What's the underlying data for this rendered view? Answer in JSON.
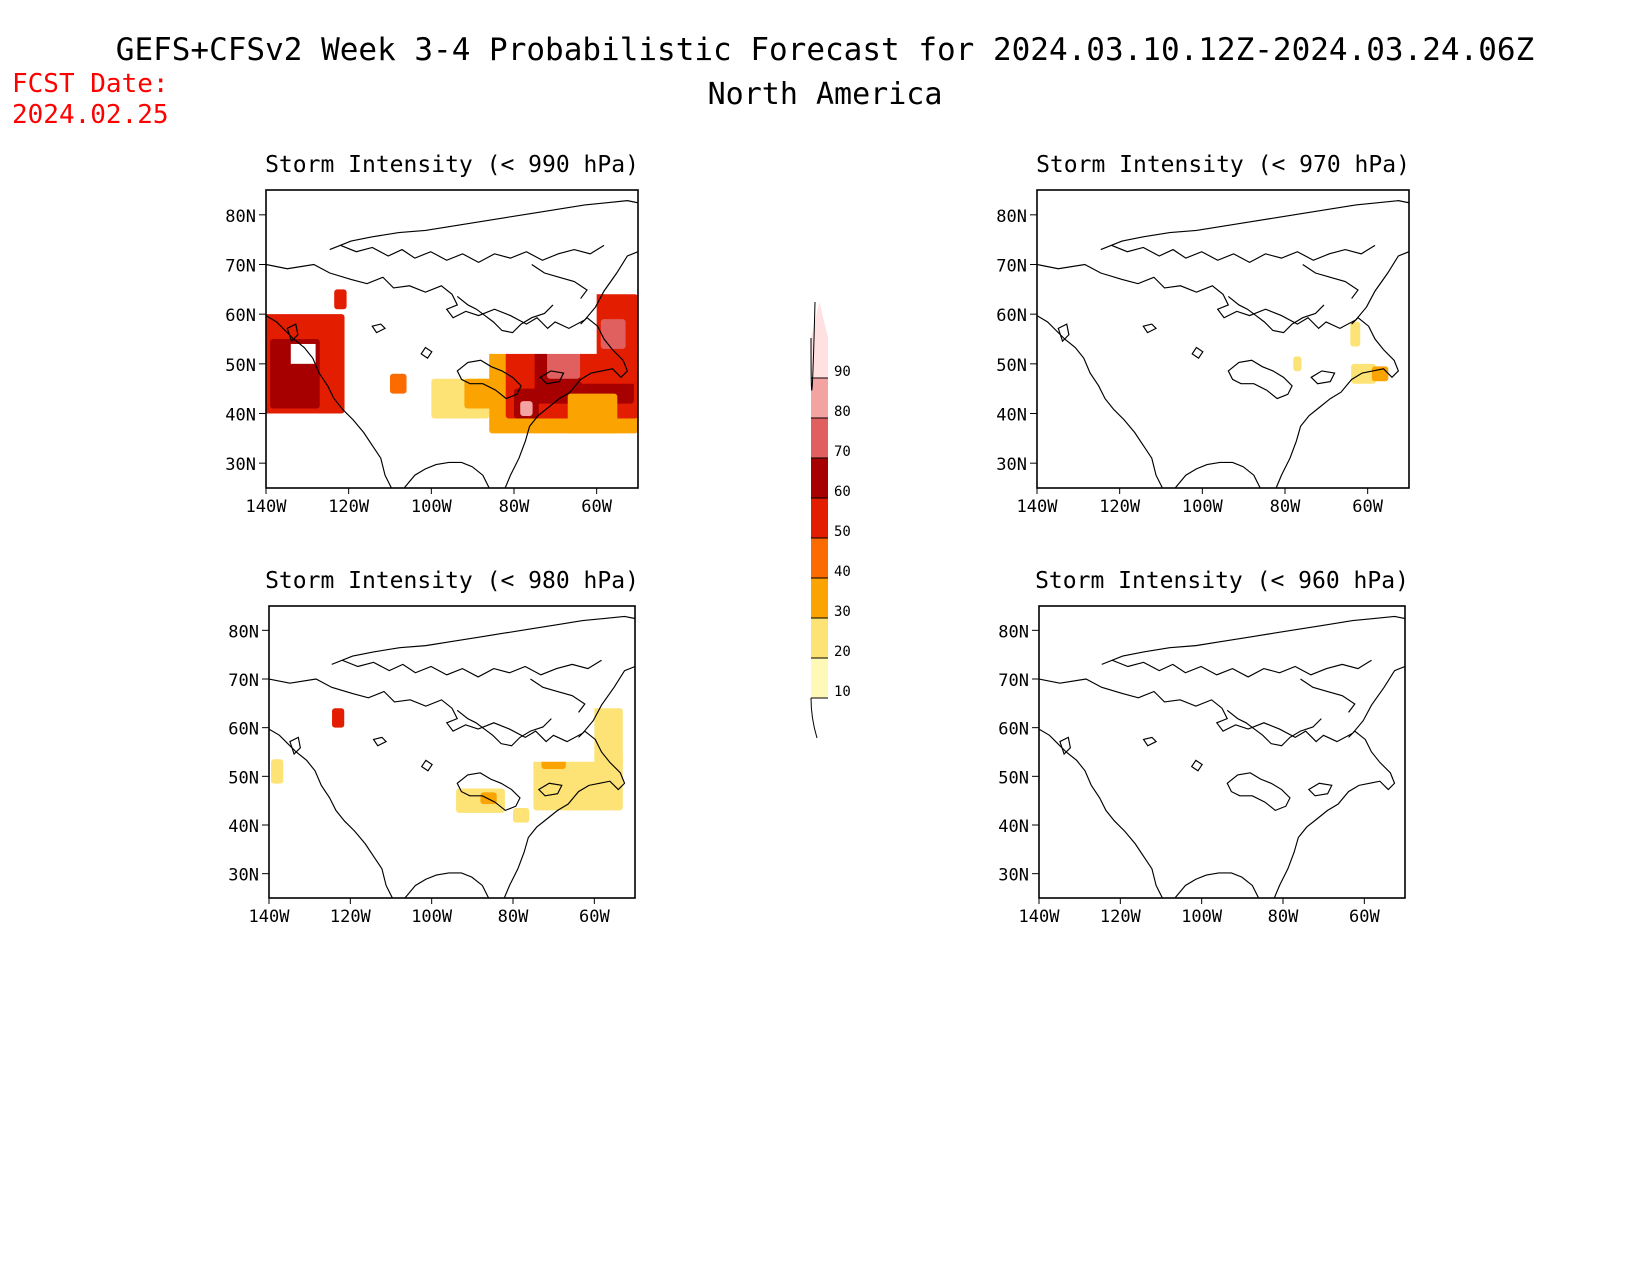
{
  "header": {
    "title": "GEFS+CFSv2 Week 3-4 Probabilistic Forecast for 2024.03.10.12Z-2024.03.24.06Z",
    "subtitle": "North America",
    "fcst_label": "FCST Date:",
    "fcst_date": "2024.02.25",
    "fcst_color": "#ff0000"
  },
  "axes": {
    "lat_ticks": [
      "80N",
      "70N",
      "60N",
      "50N",
      "40N",
      "30N"
    ],
    "lon_ticks": [
      "140W",
      "120W",
      "100W",
      "80W",
      "60W"
    ],
    "lat_values": [
      80,
      70,
      60,
      50,
      40,
      30
    ],
    "lon_values": [
      -140,
      -120,
      -100,
      -80,
      -60
    ],
    "lon_range": [
      -140,
      -50
    ],
    "lat_range": [
      25,
      85
    ]
  },
  "colorbar": {
    "labels": [
      "10",
      "20",
      "30",
      "40",
      "50",
      "60",
      "70",
      "80",
      "90"
    ],
    "colors": [
      "#fff9b7",
      "#fde376",
      "#fba300",
      "#fb6b00",
      "#e31d00",
      "#a60000",
      "#e06060",
      "#f4a3a3",
      "#ffe1e1"
    ]
  },
  "panels": [
    {
      "id": "p990",
      "title": "Storm Intensity (< 990 hPa)",
      "patches": [
        {
          "lon": -131,
          "lat": 50,
          "rx": 10,
          "ry": 10,
          "level": 4
        },
        {
          "lon": -133,
          "lat": 48,
          "rx": 6,
          "ry": 7,
          "level": 5
        },
        {
          "lon": -122,
          "lat": 63,
          "rx": 1.5,
          "ry": 2,
          "level": 4
        },
        {
          "lon": -108,
          "lat": 46,
          "rx": 2,
          "ry": 2,
          "level": 3
        },
        {
          "lon": -93,
          "lat": 43,
          "rx": 7,
          "ry": 4,
          "level": 1
        },
        {
          "lon": -87,
          "lat": 44,
          "rx": 5,
          "ry": 3,
          "level": 2
        },
        {
          "lon": -68,
          "lat": 46,
          "rx": 18,
          "ry": 10,
          "level": 2
        },
        {
          "lon": -66,
          "lat": 48,
          "rx": 16,
          "ry": 9,
          "level": 4
        },
        {
          "lon": -63,
          "lat": 50,
          "rx": 12,
          "ry": 8,
          "level": 5
        },
        {
          "lon": -57,
          "lat": 55,
          "rx": 7,
          "ry": 9,
          "level": 4
        },
        {
          "lon": -56,
          "lat": 56,
          "rx": 3,
          "ry": 3,
          "level": 6
        },
        {
          "lon": -68,
          "lat": 50,
          "rx": 4,
          "ry": 3,
          "level": 6
        },
        {
          "lon": -77,
          "lat": 42,
          "rx": 3,
          "ry": 3,
          "level": 5
        },
        {
          "lon": -77,
          "lat": 41,
          "rx": 1.5,
          "ry": 1.5,
          "level": 7
        },
        {
          "lon": -61,
          "lat": 40,
          "rx": 6,
          "ry": 4,
          "level": 2
        }
      ],
      "holes": [
        {
          "lon": -131,
          "lat": 52,
          "rx": 3,
          "ry": 2
        },
        {
          "lon": -75,
          "lat": 58.5,
          "rx": 15,
          "ry": 6.5
        }
      ]
    },
    {
      "id": "p970",
      "title": "Storm Intensity (< 970 hPa)",
      "patches": [
        {
          "lon": -61,
          "lat": 48,
          "rx": 3,
          "ry": 2,
          "level": 1
        },
        {
          "lon": -57,
          "lat": 48,
          "rx": 2,
          "ry": 1.5,
          "level": 2
        },
        {
          "lon": -77,
          "lat": 50,
          "rx": 1,
          "ry": 1.5,
          "level": 1
        },
        {
          "lon": -63,
          "lat": 56,
          "rx": 1.2,
          "ry": 2.5,
          "level": 1
        }
      ],
      "holes": []
    },
    {
      "id": "p980",
      "title": "Storm Intensity (< 980 hPa)",
      "patches": [
        {
          "lon": -123,
          "lat": 62,
          "rx": 1.5,
          "ry": 2,
          "level": 4
        },
        {
          "lon": -138,
          "lat": 51,
          "rx": 1.5,
          "ry": 2.5,
          "level": 1
        },
        {
          "lon": -88,
          "lat": 45,
          "rx": 6,
          "ry": 2.5,
          "level": 1
        },
        {
          "lon": -86,
          "lat": 45.5,
          "rx": 2,
          "ry": 1.2,
          "level": 2
        },
        {
          "lon": -64,
          "lat": 49,
          "rx": 11,
          "ry": 6,
          "level": 1
        },
        {
          "lon": -57,
          "lat": 58,
          "rx": 4,
          "ry": 6,
          "level": 1
        },
        {
          "lon": -70,
          "lat": 53,
          "rx": 3,
          "ry": 1.5,
          "level": 2
        },
        {
          "lon": -78,
          "lat": 42,
          "rx": 2,
          "ry": 1.5,
          "level": 1
        }
      ],
      "holes": [
        {
          "lon": -75,
          "lat": 58.5,
          "rx": 15,
          "ry": 5.5
        }
      ]
    },
    {
      "id": "p960",
      "title": "Storm Intensity (< 960 hPa)",
      "patches": [],
      "holes": []
    }
  ]
}
